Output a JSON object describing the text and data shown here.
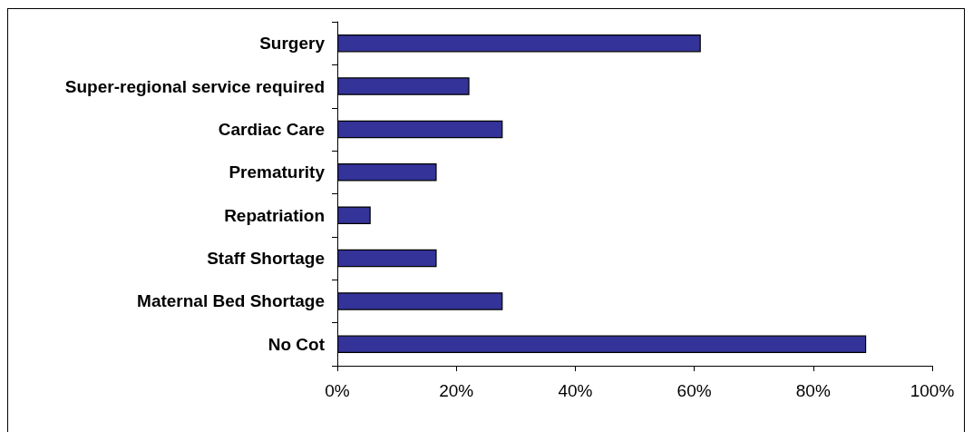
{
  "chart_data": {
    "type": "bar",
    "orientation": "horizontal",
    "categories": [
      "Surgery",
      "Super-regional service required",
      "Cardiac Care",
      "Prematurity",
      "Repatriation",
      "Staff Shortage",
      "Maternal Bed Shortage",
      "No Cot"
    ],
    "values": [
      61.1,
      22.2,
      27.8,
      16.7,
      5.6,
      16.7,
      27.8,
      88.9
    ],
    "color": "#333399",
    "xlim": [
      0,
      100
    ],
    "xticks": [
      {
        "value": 0,
        "label": "0%"
      },
      {
        "value": 20,
        "label": "20%"
      },
      {
        "value": 40,
        "label": "40%"
      },
      {
        "value": 60,
        "label": "60%"
      },
      {
        "value": 80,
        "label": "80%"
      },
      {
        "value": 100,
        "label": "100%"
      }
    ]
  }
}
